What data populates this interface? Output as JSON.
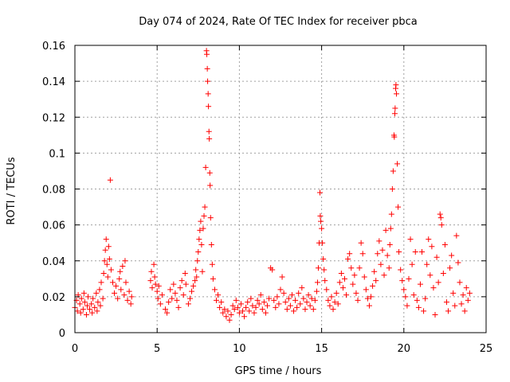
{
  "chart_data": {
    "type": "scatter",
    "title": "Day 074 of 2024, Rate Of TEC Index for receiver pbca",
    "xlabel": "GPS time / hours",
    "ylabel": "ROTI / TECUs",
    "xlim": [
      0,
      25
    ],
    "ylim": [
      0,
      0.16
    ],
    "xticks": [
      0,
      5,
      10,
      15,
      20,
      25
    ],
    "xtick_labels": [
      "0",
      "5",
      "10",
      "15",
      "20",
      "25"
    ],
    "yticks": [
      0,
      0.02,
      0.04,
      0.06,
      0.08,
      0.1,
      0.12,
      0.14,
      0.16
    ],
    "ytick_labels": [
      "0",
      "0.02",
      "0.04",
      "0.06",
      "0.08",
      "0.1",
      "0.12",
      "0.14",
      "0.16"
    ],
    "grid": true,
    "marker": "+",
    "colors": {
      "points": "#ff0000",
      "grid": "#a0a0a0",
      "axes": "#000000"
    },
    "series": [
      {
        "name": "ROTI",
        "points": [
          [
            0.0,
            0.014
          ],
          [
            0.1,
            0.018
          ],
          [
            0.15,
            0.012
          ],
          [
            0.2,
            0.021
          ],
          [
            0.3,
            0.016
          ],
          [
            0.35,
            0.011
          ],
          [
            0.4,
            0.019
          ],
          [
            0.5,
            0.013
          ],
          [
            0.55,
            0.022
          ],
          [
            0.6,
            0.017
          ],
          [
            0.7,
            0.01
          ],
          [
            0.75,
            0.015
          ],
          [
            0.8,
            0.02
          ],
          [
            0.9,
            0.013
          ],
          [
            1.0,
            0.016
          ],
          [
            1.05,
            0.011
          ],
          [
            1.1,
            0.019
          ],
          [
            1.2,
            0.014
          ],
          [
            1.3,
            0.022
          ],
          [
            1.35,
            0.012
          ],
          [
            1.4,
            0.017
          ],
          [
            1.5,
            0.024
          ],
          [
            1.55,
            0.015
          ],
          [
            1.6,
            0.028
          ],
          [
            1.7,
            0.019
          ],
          [
            1.75,
            0.033
          ],
          [
            1.8,
            0.04
          ],
          [
            1.85,
            0.046
          ],
          [
            1.9,
            0.052
          ],
          [
            1.95,
            0.038
          ],
          [
            2.0,
            0.031
          ],
          [
            2.05,
            0.048
          ],
          [
            2.1,
            0.041
          ],
          [
            2.15,
            0.085
          ],
          [
            2.2,
            0.035
          ],
          [
            2.3,
            0.028
          ],
          [
            2.4,
            0.022
          ],
          [
            2.5,
            0.026
          ],
          [
            2.6,
            0.019
          ],
          [
            2.7,
            0.03
          ],
          [
            2.75,
            0.034
          ],
          [
            2.8,
            0.024
          ],
          [
            2.9,
            0.037
          ],
          [
            3.0,
            0.021
          ],
          [
            3.05,
            0.04
          ],
          [
            3.1,
            0.028
          ],
          [
            3.2,
            0.018
          ],
          [
            3.3,
            0.023
          ],
          [
            3.4,
            0.016
          ],
          [
            3.45,
            0.02
          ],
          [
            4.6,
            0.029
          ],
          [
            4.65,
            0.034
          ],
          [
            4.7,
            0.025
          ],
          [
            4.8,
            0.038
          ],
          [
            4.85,
            0.031
          ],
          [
            4.9,
            0.027
          ],
          [
            5.0,
            0.023
          ],
          [
            5.05,
            0.019
          ],
          [
            5.1,
            0.026
          ],
          [
            5.2,
            0.016
          ],
          [
            5.3,
            0.021
          ],
          [
            5.5,
            0.013
          ],
          [
            5.6,
            0.011
          ],
          [
            5.7,
            0.017
          ],
          [
            5.8,
            0.024
          ],
          [
            5.9,
            0.019
          ],
          [
            6.0,
            0.027
          ],
          [
            6.1,
            0.022
          ],
          [
            6.2,
            0.018
          ],
          [
            6.3,
            0.014
          ],
          [
            6.4,
            0.025
          ],
          [
            6.5,
            0.029
          ],
          [
            6.6,
            0.021
          ],
          [
            6.7,
            0.033
          ],
          [
            6.75,
            0.027
          ],
          [
            6.9,
            0.016
          ],
          [
            7.0,
            0.019
          ],
          [
            7.1,
            0.023
          ],
          [
            7.2,
            0.026
          ],
          [
            7.3,
            0.029
          ],
          [
            7.35,
            0.035
          ],
          [
            7.4,
            0.031
          ],
          [
            7.45,
            0.04
          ],
          [
            7.5,
            0.045
          ],
          [
            7.55,
            0.052
          ],
          [
            7.6,
            0.057
          ],
          [
            7.65,
            0.062
          ],
          [
            7.7,
            0.049
          ],
          [
            7.75,
            0.034
          ],
          [
            7.8,
            0.058
          ],
          [
            7.85,
            0.065
          ],
          [
            7.9,
            0.07
          ],
          [
            7.95,
            0.092
          ],
          [
            8.0,
            0.157
          ],
          [
            8.02,
            0.155
          ],
          [
            8.05,
            0.147
          ],
          [
            8.07,
            0.14
          ],
          [
            8.1,
            0.133
          ],
          [
            8.12,
            0.126
          ],
          [
            8.15,
            0.112
          ],
          [
            8.17,
            0.108
          ],
          [
            8.2,
            0.089
          ],
          [
            8.22,
            0.082
          ],
          [
            8.25,
            0.064
          ],
          [
            8.3,
            0.049
          ],
          [
            8.35,
            0.038
          ],
          [
            8.4,
            0.03
          ],
          [
            8.5,
            0.024
          ],
          [
            8.6,
            0.018
          ],
          [
            8.7,
            0.021
          ],
          [
            8.8,
            0.014
          ],
          [
            8.9,
            0.017
          ],
          [
            9.0,
            0.011
          ],
          [
            9.1,
            0.013
          ],
          [
            9.2,
            0.009
          ],
          [
            9.3,
            0.012
          ],
          [
            9.4,
            0.007
          ],
          [
            9.5,
            0.01
          ],
          [
            9.6,
            0.015
          ],
          [
            9.7,
            0.013
          ],
          [
            9.8,
            0.018
          ],
          [
            9.9,
            0.014
          ],
          [
            10.0,
            0.011
          ],
          [
            10.1,
            0.016
          ],
          [
            10.2,
            0.012
          ],
          [
            10.3,
            0.009
          ],
          [
            10.4,
            0.014
          ],
          [
            10.5,
            0.017
          ],
          [
            10.6,
            0.012
          ],
          [
            10.7,
            0.019
          ],
          [
            10.8,
            0.015
          ],
          [
            10.9,
            0.011
          ],
          [
            11.0,
            0.014
          ],
          [
            11.1,
            0.018
          ],
          [
            11.2,
            0.016
          ],
          [
            11.3,
            0.021
          ],
          [
            11.4,
            0.013
          ],
          [
            11.5,
            0.017
          ],
          [
            11.6,
            0.011
          ],
          [
            11.7,
            0.015
          ],
          [
            11.8,
            0.019
          ],
          [
            11.9,
            0.036
          ],
          [
            12.0,
            0.035
          ],
          [
            12.1,
            0.018
          ],
          [
            12.2,
            0.014
          ],
          [
            12.3,
            0.02
          ],
          [
            12.4,
            0.016
          ],
          [
            12.5,
            0.024
          ],
          [
            12.6,
            0.031
          ],
          [
            12.7,
            0.022
          ],
          [
            12.8,
            0.017
          ],
          [
            12.9,
            0.013
          ],
          [
            13.0,
            0.019
          ],
          [
            13.1,
            0.015
          ],
          [
            13.2,
            0.021
          ],
          [
            13.3,
            0.012
          ],
          [
            13.4,
            0.018
          ],
          [
            13.5,
            0.014
          ],
          [
            13.6,
            0.022
          ],
          [
            13.7,
            0.016
          ],
          [
            13.8,
            0.025
          ],
          [
            13.9,
            0.019
          ],
          [
            14.0,
            0.013
          ],
          [
            14.1,
            0.017
          ],
          [
            14.2,
            0.021
          ],
          [
            14.3,
            0.015
          ],
          [
            14.4,
            0.019
          ],
          [
            14.5,
            0.013
          ],
          [
            14.6,
            0.018
          ],
          [
            14.7,
            0.023
          ],
          [
            14.75,
            0.028
          ],
          [
            14.8,
            0.036
          ],
          [
            14.85,
            0.05
          ],
          [
            14.9,
            0.078
          ],
          [
            14.92,
            0.065
          ],
          [
            14.95,
            0.062
          ],
          [
            15.0,
            0.058
          ],
          [
            15.05,
            0.05
          ],
          [
            15.1,
            0.041
          ],
          [
            15.15,
            0.035
          ],
          [
            15.2,
            0.029
          ],
          [
            15.3,
            0.024
          ],
          [
            15.4,
            0.018
          ],
          [
            15.5,
            0.015
          ],
          [
            15.6,
            0.02
          ],
          [
            15.7,
            0.013
          ],
          [
            15.8,
            0.017
          ],
          [
            15.9,
            0.022
          ],
          [
            16.0,
            0.016
          ],
          [
            16.1,
            0.028
          ],
          [
            16.2,
            0.033
          ],
          [
            16.3,
            0.025
          ],
          [
            16.4,
            0.03
          ],
          [
            16.5,
            0.021
          ],
          [
            16.6,
            0.041
          ],
          [
            16.7,
            0.044
          ],
          [
            16.8,
            0.036
          ],
          [
            16.9,
            0.027
          ],
          [
            17.0,
            0.032
          ],
          [
            17.1,
            0.022
          ],
          [
            17.2,
            0.018
          ],
          [
            17.3,
            0.036
          ],
          [
            17.4,
            0.05
          ],
          [
            17.5,
            0.044
          ],
          [
            17.6,
            0.031
          ],
          [
            17.7,
            0.024
          ],
          [
            17.8,
            0.019
          ],
          [
            17.9,
            0.015
          ],
          [
            18.0,
            0.02
          ],
          [
            18.1,
            0.026
          ],
          [
            18.2,
            0.034
          ],
          [
            18.3,
            0.029
          ],
          [
            18.4,
            0.044
          ],
          [
            18.5,
            0.051
          ],
          [
            18.6,
            0.038
          ],
          [
            18.7,
            0.046
          ],
          [
            18.8,
            0.032
          ],
          [
            18.9,
            0.057
          ],
          [
            19.0,
            0.043
          ],
          [
            19.1,
            0.036
          ],
          [
            19.15,
            0.049
          ],
          [
            19.2,
            0.058
          ],
          [
            19.25,
            0.066
          ],
          [
            19.3,
            0.08
          ],
          [
            19.35,
            0.09
          ],
          [
            19.4,
            0.11
          ],
          [
            19.42,
            0.109
          ],
          [
            19.45,
            0.122
          ],
          [
            19.47,
            0.125
          ],
          [
            19.5,
            0.136
          ],
          [
            19.52,
            0.138
          ],
          [
            19.55,
            0.133
          ],
          [
            19.6,
            0.094
          ],
          [
            19.65,
            0.07
          ],
          [
            19.7,
            0.045
          ],
          [
            19.8,
            0.035
          ],
          [
            19.9,
            0.029
          ],
          [
            20.0,
            0.024
          ],
          [
            20.1,
            0.02
          ],
          [
            20.2,
            0.015
          ],
          [
            20.3,
            0.03
          ],
          [
            20.4,
            0.052
          ],
          [
            20.5,
            0.038
          ],
          [
            20.6,
            0.021
          ],
          [
            20.7,
            0.045
          ],
          [
            20.8,
            0.018
          ],
          [
            20.9,
            0.014
          ],
          [
            21.0,
            0.027
          ],
          [
            21.1,
            0.045
          ],
          [
            21.2,
            0.012
          ],
          [
            21.3,
            0.019
          ],
          [
            21.4,
            0.038
          ],
          [
            21.5,
            0.052
          ],
          [
            21.6,
            0.032
          ],
          [
            21.7,
            0.048
          ],
          [
            21.8,
            0.025
          ],
          [
            21.9,
            0.01
          ],
          [
            22.0,
            0.042
          ],
          [
            22.1,
            0.028
          ],
          [
            22.2,
            0.066
          ],
          [
            22.25,
            0.064
          ],
          [
            22.3,
            0.06
          ],
          [
            22.4,
            0.033
          ],
          [
            22.5,
            0.049
          ],
          [
            22.6,
            0.017
          ],
          [
            22.7,
            0.012
          ],
          [
            22.8,
            0.036
          ],
          [
            22.9,
            0.043
          ],
          [
            23.0,
            0.022
          ],
          [
            23.1,
            0.015
          ],
          [
            23.2,
            0.054
          ],
          [
            23.3,
            0.039
          ],
          [
            23.4,
            0.028
          ],
          [
            23.5,
            0.016
          ],
          [
            23.6,
            0.021
          ],
          [
            23.7,
            0.012
          ],
          [
            23.8,
            0.025
          ],
          [
            23.9,
            0.018
          ],
          [
            24.0,
            0.022
          ]
        ]
      }
    ]
  }
}
